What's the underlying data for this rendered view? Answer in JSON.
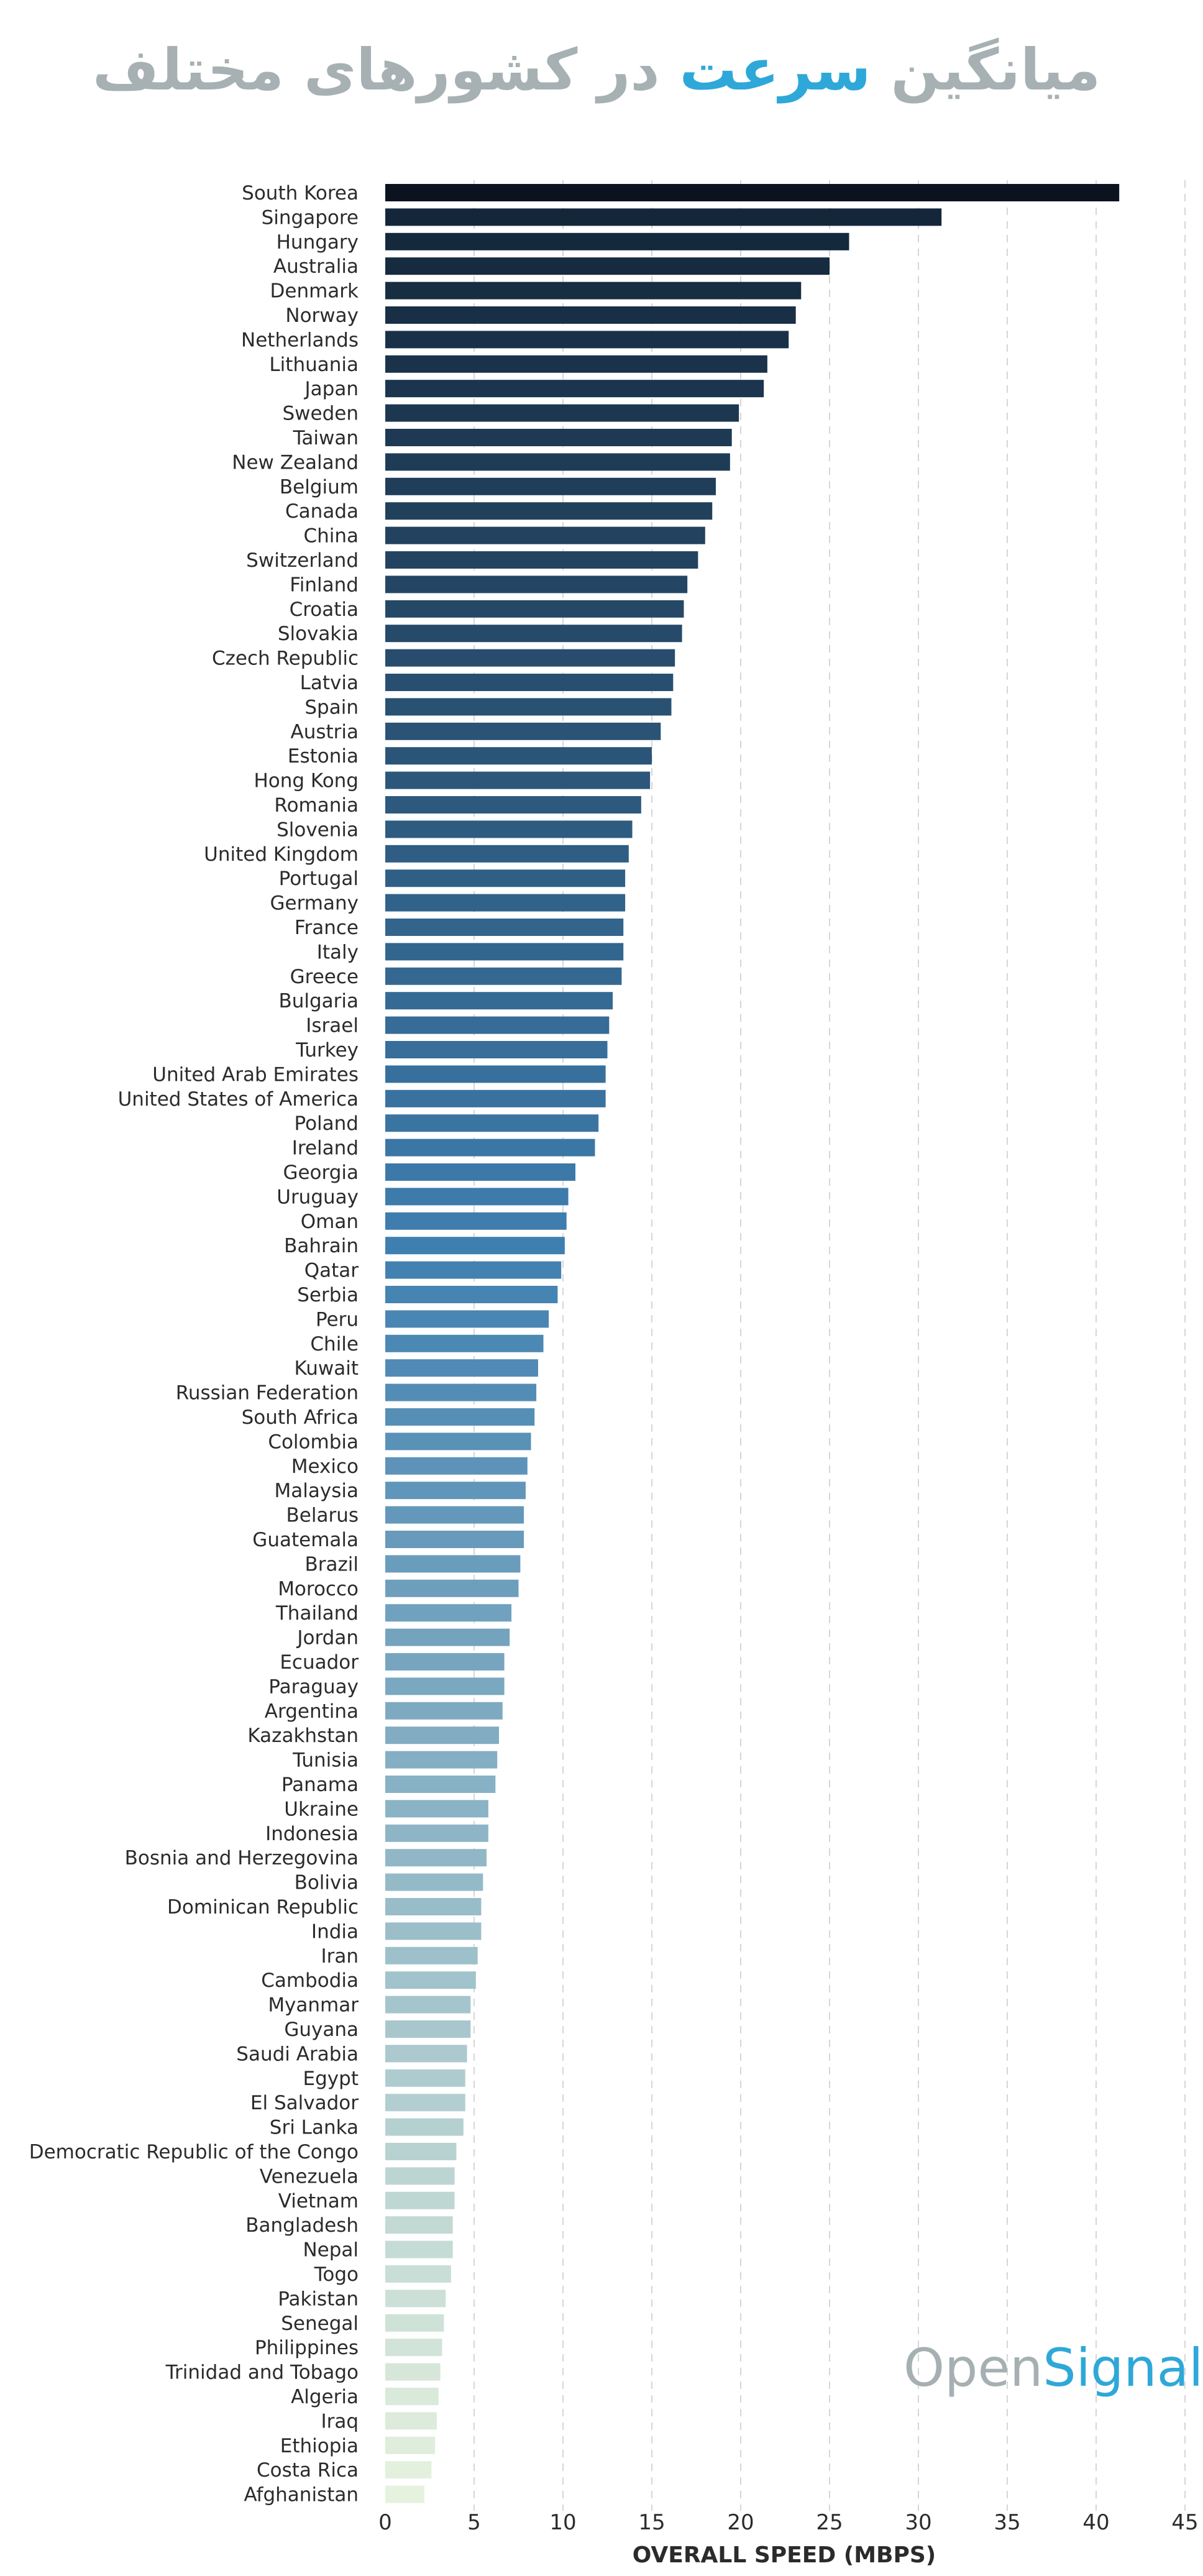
{
  "title": {
    "part1": "میانگین",
    "accent": "سرعت",
    "part2": "در کشورهای مختلف"
  },
  "logo": {
    "open": "Open",
    "signal": "Signal"
  },
  "colors": {
    "title_gray": "#a7b1b3",
    "accent_blue": "#2ea8d8",
    "bar_dark": "#0b1320",
    "bar_mid": "#3f7fb0",
    "bar_light": "#e6f2de"
  },
  "chart_data": {
    "type": "bar",
    "orientation": "horizontal",
    "xlabel": "OVERALL SPEED (MBPS)",
    "xlim": [
      0,
      45
    ],
    "xticks": [
      0,
      5,
      10,
      15,
      20,
      25,
      30,
      35,
      40,
      45
    ],
    "grid": "vertical dashed",
    "categories": [
      "South Korea",
      "Singapore",
      "Hungary",
      "Australia",
      "Denmark",
      "Norway",
      "Netherlands",
      "Lithuania",
      "Japan",
      "Sweden",
      "Taiwan",
      "New Zealand",
      "Belgium",
      "Canada",
      "China",
      "Switzerland",
      "Finland",
      "Croatia",
      "Slovakia",
      "Czech Republic",
      "Latvia",
      "Spain",
      "Austria",
      "Estonia",
      "Hong Kong",
      "Romania",
      "Slovenia",
      "United Kingdom",
      "Portugal",
      "Germany",
      "France",
      "Italy",
      "Greece",
      "Bulgaria",
      "Israel",
      "Turkey",
      "United Arab Emirates",
      "United States of America",
      "Poland",
      "Ireland",
      "Georgia",
      "Uruguay",
      "Oman",
      "Bahrain",
      "Qatar",
      "Serbia",
      "Peru",
      "Chile",
      "Kuwait",
      "Russian Federation",
      "South Africa",
      "Colombia",
      "Mexico",
      "Malaysia",
      "Belarus",
      "Guatemala",
      "Brazil",
      "Morocco",
      "Thailand",
      "Jordan",
      "Ecuador",
      "Paraguay",
      "Argentina",
      "Kazakhstan",
      "Tunisia",
      "Panama",
      "Ukraine",
      "Indonesia",
      "Bosnia and Herzegovina",
      "Bolivia",
      "Dominican Republic",
      "India",
      "Iran",
      "Cambodia",
      "Myanmar",
      "Guyana",
      "Saudi Arabia",
      "Egypt",
      "El Salvador",
      "Sri Lanka",
      "Democratic Republic of the Congo",
      "Venezuela",
      "Vietnam",
      "Bangladesh",
      "Nepal",
      "Togo",
      "Pakistan",
      "Senegal",
      "Philippines",
      "Trinidad and Tobago",
      "Algeria",
      "Iraq",
      "Ethiopia",
      "Costa Rica",
      "Afghanistan"
    ],
    "values": [
      41.3,
      31.3,
      26.1,
      25.0,
      23.4,
      23.1,
      22.7,
      21.5,
      21.3,
      19.9,
      19.5,
      19.4,
      18.6,
      18.4,
      18.0,
      17.6,
      17.0,
      16.8,
      16.7,
      16.3,
      16.2,
      16.1,
      15.5,
      15.0,
      14.9,
      14.4,
      13.9,
      13.7,
      13.5,
      13.5,
      13.4,
      13.4,
      13.3,
      12.8,
      12.6,
      12.5,
      12.4,
      12.4,
      12.0,
      11.8,
      10.7,
      10.3,
      10.2,
      10.1,
      9.9,
      9.7,
      9.2,
      8.9,
      8.6,
      8.5,
      8.4,
      8.2,
      8.0,
      7.9,
      7.8,
      7.8,
      7.6,
      7.5,
      7.1,
      7.0,
      6.7,
      6.7,
      6.6,
      6.4,
      6.3,
      6.2,
      5.8,
      5.8,
      5.7,
      5.5,
      5.4,
      5.4,
      5.2,
      5.1,
      4.8,
      4.8,
      4.6,
      4.5,
      4.5,
      4.4,
      4.0,
      3.9,
      3.9,
      3.8,
      3.8,
      3.7,
      3.4,
      3.3,
      3.2,
      3.1,
      3.0,
      2.9,
      2.8,
      2.6,
      2.2
    ]
  }
}
